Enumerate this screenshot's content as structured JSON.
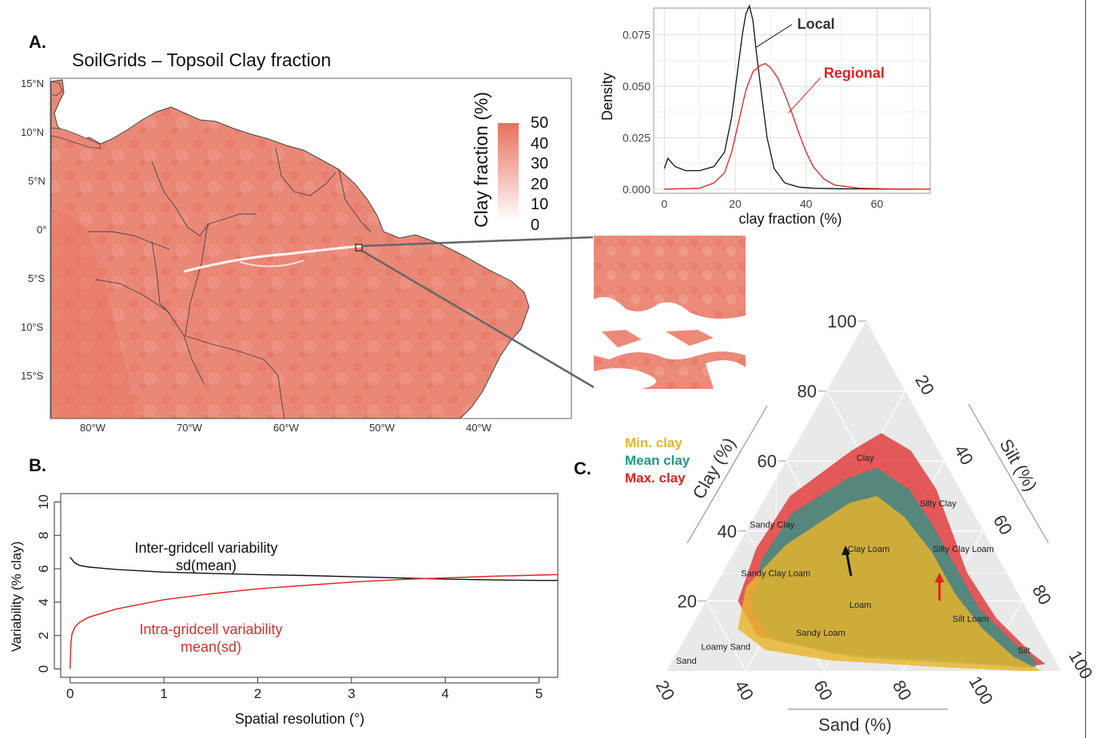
{
  "panels": {
    "a": {
      "letter": "A.",
      "title": "SoilGrids – Topsoil Clay fraction"
    },
    "b": {
      "letter": "B."
    },
    "c": {
      "letter": "C."
    }
  },
  "map": {
    "legend_title": "Clay fraction (%)",
    "legend_values": [
      "50",
      "40",
      "30",
      "20",
      "10",
      "0"
    ],
    "lat_labels": [
      "15°N",
      "10°N",
      "5°N",
      "0°",
      "5°S",
      "10°S",
      "15°S"
    ],
    "lon_labels": [
      "80°W",
      "70°W",
      "60°W",
      "50°W",
      "40°W"
    ],
    "color_low": "#ffffff",
    "color_high": "#e8705c"
  },
  "chart_data": [
    {
      "type": "line",
      "panel": "A-inset-density",
      "xlabel": "clay fraction (%)",
      "ylabel": "Density",
      "xlim": [
        -3,
        75
      ],
      "ylim": [
        -0.002,
        0.088
      ],
      "xticks": [
        0,
        20,
        40,
        60
      ],
      "yticks": [
        0.0,
        0.025,
        0.05,
        0.075
      ],
      "ytick_labels": [
        "0.000",
        "0.025",
        "0.050",
        "0.075"
      ],
      "grid": true,
      "series": [
        {
          "name": "Local",
          "color": "#111111",
          "x": [
            0,
            1,
            3,
            6,
            10,
            14,
            17,
            19,
            20.5,
            22,
            23,
            24,
            25,
            26,
            27.5,
            29,
            31,
            34,
            38,
            42,
            50,
            60,
            70
          ],
          "y": [
            0.01,
            0.015,
            0.011,
            0.009,
            0.009,
            0.011,
            0.018,
            0.035,
            0.055,
            0.075,
            0.085,
            0.089,
            0.082,
            0.066,
            0.045,
            0.025,
            0.01,
            0.003,
            0.001,
            0.0005,
            0.0002,
            0.0001,
            0.0
          ]
        },
        {
          "name": "Regional",
          "color": "#e02020",
          "x": [
            0,
            10,
            14,
            17,
            19,
            21,
            23,
            25,
            27,
            28.5,
            30,
            32,
            34,
            36,
            38,
            40,
            42,
            45,
            48,
            55,
            65,
            75
          ],
          "y": [
            0.0,
            0.0005,
            0.003,
            0.008,
            0.018,
            0.033,
            0.048,
            0.057,
            0.06,
            0.061,
            0.059,
            0.054,
            0.046,
            0.037,
            0.027,
            0.018,
            0.011,
            0.005,
            0.002,
            0.0005,
            0.0001,
            0.0
          ]
        }
      ]
    },
    {
      "type": "line",
      "panel": "B",
      "xlabel": "Spatial resolution (°)",
      "ylabel": "Variability (% clay)",
      "xlim": [
        -0.1,
        5.2
      ],
      "ylim": [
        -0.5,
        10.5
      ],
      "xticks": [
        0,
        1,
        2,
        3,
        4,
        5
      ],
      "yticks": [
        0,
        2,
        4,
        6,
        8,
        10
      ],
      "grid": false,
      "series": [
        {
          "name": "Inter-gridcell variability sd(mean)",
          "color": "#111111",
          "x": [
            0.0,
            0.02,
            0.05,
            0.1,
            0.2,
            0.5,
            1.0,
            1.5,
            2.0,
            2.5,
            3.0,
            3.5,
            4.0,
            4.5,
            5.0,
            5.2
          ],
          "y": [
            6.7,
            6.55,
            6.35,
            6.2,
            6.1,
            5.95,
            5.8,
            5.72,
            5.65,
            5.6,
            5.52,
            5.45,
            5.38,
            5.33,
            5.3,
            5.3
          ]
        },
        {
          "name": "Intra-gridcell variability mean(sd)",
          "color": "#e02020",
          "x": [
            0.0,
            0.005,
            0.01,
            0.02,
            0.05,
            0.1,
            0.2,
            0.5,
            1.0,
            1.5,
            2.0,
            2.5,
            3.0,
            3.5,
            4.0,
            4.5,
            5.0,
            5.2
          ],
          "y": [
            0.0,
            1.0,
            1.6,
            2.1,
            2.5,
            2.8,
            3.1,
            3.6,
            4.15,
            4.5,
            4.8,
            5.0,
            5.2,
            5.35,
            5.45,
            5.55,
            5.62,
            5.65
          ]
        }
      ],
      "annotations": [
        {
          "line1": "Inter-gridcell variability",
          "line2": "sd(mean)",
          "color": "#111111"
        },
        {
          "line1": "Intra-gridcell variability",
          "line2": "mean(sd)",
          "color": "#d03030"
        }
      ]
    },
    {
      "type": "ternary",
      "panel": "C",
      "axes": {
        "clay": "Clay (%)",
        "silt": "Silt (%)",
        "sand": "Sand (%)"
      },
      "tick_values": [
        20,
        40,
        60,
        80,
        100
      ],
      "clay_ticks": [
        "20",
        "40",
        "60",
        "80",
        "100"
      ],
      "silt_ticks": [
        "20",
        "40",
        "60",
        "80",
        "100"
      ],
      "sand_ticks": [
        "100",
        "80",
        "60",
        "40",
        "20"
      ],
      "legend": [
        {
          "label": "Min. clay",
          "color": "#e8b52c"
        },
        {
          "label": "Mean clay",
          "color": "#1f9a8a"
        },
        {
          "label": "Max. clay",
          "color": "#e02020"
        }
      ],
      "classes": [
        "Clay",
        "Silty Clay",
        "Sandy Clay",
        "Clay Loam",
        "Silty Clay Loam",
        "Sandy Clay Loam",
        "Loam",
        "Silt Loam",
        "Sandy Loam",
        "Loamy Sand",
        "Sand",
        "Silt"
      ]
    }
  ]
}
